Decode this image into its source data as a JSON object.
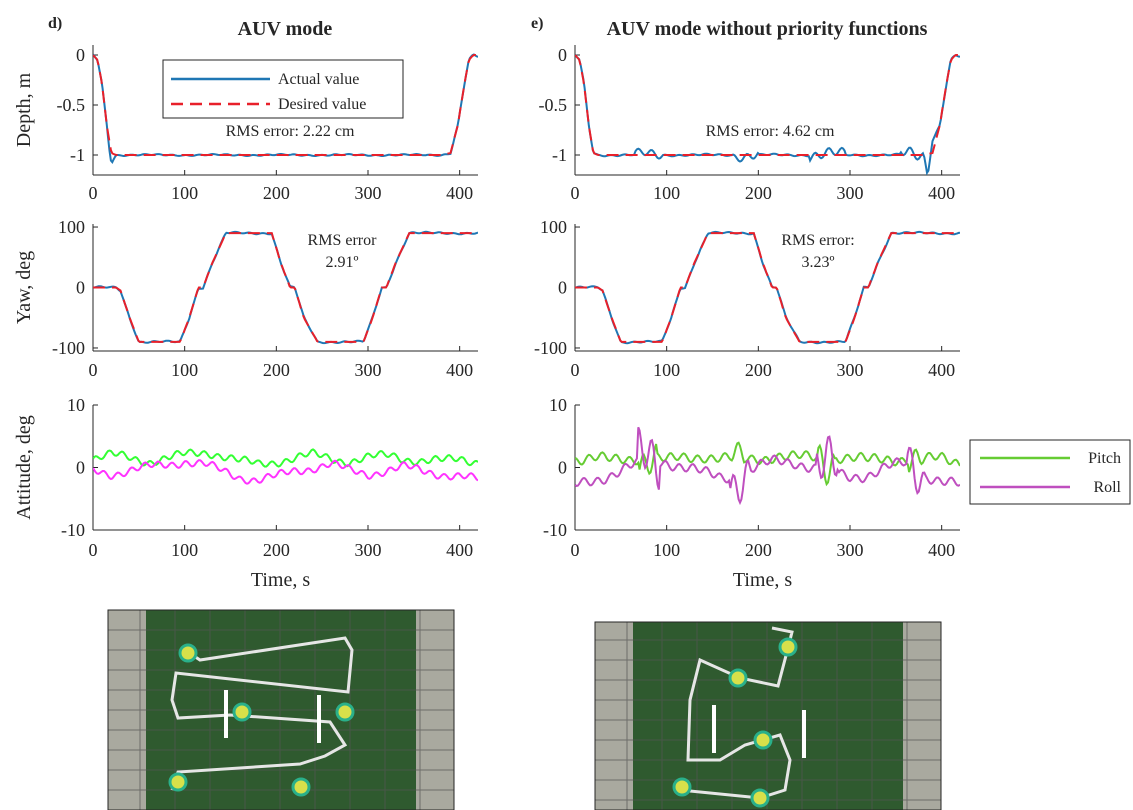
{
  "panel_labels": {
    "left": "d)",
    "right": "e)"
  },
  "legend_top": {
    "actual": "Actual value",
    "desired": "Desired value"
  },
  "legend_att": {
    "pitch": "Pitch",
    "roll": "Roll"
  },
  "colors": {
    "actual": "#1f77b4",
    "desired": "#e8202a",
    "pitch_left": "#33ff33",
    "roll_left": "#ff33ff",
    "pitch_right": "#66cc33",
    "roll_right": "#bf4fbf",
    "axis": "#262626",
    "tank": "#2f5a2f",
    "track": "#e6e6e6",
    "vehicle": "#d8e04a"
  },
  "chart_data": [
    {
      "id": "d-depth",
      "type": "line",
      "title": "AUV mode",
      "xlabel": "",
      "ylabel": "Depth, m",
      "xlim": [
        0,
        420
      ],
      "ylim": [
        -1.2,
        0.1
      ],
      "xticks": [
        "0",
        "100",
        "200",
        "300",
        "400"
      ],
      "yticks": [
        "0",
        "-0.5",
        "-1"
      ],
      "annotation": "RMS error: 2.22 cm",
      "series": [
        {
          "name": "Actual value",
          "x": [
            0,
            5,
            10,
            15,
            18,
            20,
            25,
            50,
            100,
            150,
            200,
            250,
            300,
            350,
            380,
            390,
            398,
            405,
            410,
            415,
            420
          ],
          "y": [
            0,
            -0.05,
            -0.3,
            -0.7,
            -0.95,
            -1.08,
            -1.0,
            -1.0,
            -1.0,
            -1.0,
            -1.0,
            -1.0,
            -1.0,
            -1.0,
            -1.0,
            -0.98,
            -0.7,
            -0.3,
            -0.05,
            0,
            -0.02
          ]
        },
        {
          "name": "Desired value",
          "x": [
            0,
            5,
            10,
            15,
            20,
            25,
            50,
            100,
            150,
            200,
            250,
            300,
            350,
            380,
            390,
            398,
            405,
            410,
            415,
            420
          ],
          "y": [
            0,
            -0.05,
            -0.3,
            -0.7,
            -0.98,
            -1.0,
            -1.0,
            -1.0,
            -1.0,
            -1.0,
            -1.0,
            -1.0,
            -1.0,
            -1.0,
            -0.98,
            -0.7,
            -0.3,
            -0.05,
            0,
            0
          ]
        }
      ]
    },
    {
      "id": "e-depth",
      "type": "line",
      "title": "AUV mode without priority functions",
      "xlabel": "",
      "ylabel": "",
      "xlim": [
        0,
        420
      ],
      "ylim": [
        -1.2,
        0.1
      ],
      "xticks": [
        "0",
        "100",
        "200",
        "300",
        "400"
      ],
      "yticks": [
        "0",
        "-0.5",
        "-1"
      ],
      "annotation": "RMS error: 4.62 cm",
      "series": [
        {
          "name": "Actual value",
          "x": [
            0,
            5,
            10,
            15,
            20,
            25,
            50,
            100,
            150,
            200,
            250,
            300,
            350,
            380,
            385,
            390,
            398,
            405,
            410,
            415,
            420
          ],
          "y": [
            0,
            -0.05,
            -0.3,
            -0.7,
            -0.98,
            -1.0,
            -1.0,
            -1.0,
            -1.0,
            -1.0,
            -1.0,
            -1.0,
            -1.0,
            -1.0,
            -1.18,
            -0.85,
            -0.7,
            -0.3,
            -0.05,
            0,
            -0.02
          ]
        },
        {
          "name": "Desired value",
          "x": [
            0,
            5,
            10,
            15,
            20,
            25,
            50,
            100,
            150,
            200,
            250,
            300,
            350,
            380,
            390,
            398,
            405,
            410,
            415,
            420
          ],
          "y": [
            0,
            -0.05,
            -0.3,
            -0.7,
            -0.98,
            -1.0,
            -1.0,
            -1.0,
            -1.0,
            -1.0,
            -1.0,
            -1.0,
            -1.0,
            -1.0,
            -0.98,
            -0.7,
            -0.3,
            -0.05,
            0,
            0
          ]
        }
      ]
    },
    {
      "id": "d-yaw",
      "type": "line",
      "xlabel": "",
      "ylabel": "Yaw, deg",
      "xlim": [
        0,
        420
      ],
      "ylim": [
        -105,
        105
      ],
      "xticks": [
        "0",
        "100",
        "200",
        "300",
        "400"
      ],
      "yticks": [
        "100",
        "0",
        "-100"
      ],
      "annotation": [
        "RMS error",
        "2.91º"
      ],
      "series": [
        {
          "name": "Actual value",
          "x": [
            0,
            25,
            30,
            40,
            50,
            95,
            105,
            115,
            120,
            130,
            145,
            195,
            205,
            215,
            220,
            230,
            245,
            295,
            305,
            315,
            320,
            330,
            345,
            420
          ],
          "y": [
            0,
            0,
            -5,
            -50,
            -90,
            -90,
            -50,
            0,
            0,
            40,
            90,
            90,
            40,
            0,
            0,
            -50,
            -90,
            -90,
            -50,
            0,
            0,
            40,
            90,
            90
          ]
        },
        {
          "name": "Desired value",
          "x": [
            0,
            25,
            30,
            40,
            50,
            95,
            105,
            115,
            120,
            130,
            145,
            195,
            205,
            215,
            220,
            230,
            245,
            295,
            305,
            315,
            320,
            330,
            345,
            420
          ],
          "y": [
            0,
            0,
            -5,
            -50,
            -90,
            -90,
            -50,
            0,
            0,
            40,
            90,
            90,
            40,
            0,
            0,
            -50,
            -90,
            -90,
            -50,
            0,
            0,
            40,
            90,
            90
          ]
        }
      ]
    },
    {
      "id": "e-yaw",
      "type": "line",
      "xlabel": "",
      "ylabel": "",
      "xlim": [
        0,
        420
      ],
      "ylim": [
        -105,
        105
      ],
      "xticks": [
        "0",
        "100",
        "200",
        "300",
        "400"
      ],
      "yticks": [
        "100",
        "0",
        "-100"
      ],
      "annotation": [
        "RMS error:",
        "3.23º"
      ],
      "series": [
        {
          "name": "Actual value",
          "x": [
            0,
            25,
            30,
            40,
            50,
            95,
            105,
            115,
            120,
            130,
            145,
            195,
            205,
            215,
            220,
            230,
            245,
            295,
            305,
            315,
            320,
            330,
            345,
            420
          ],
          "y": [
            0,
            0,
            -5,
            -50,
            -90,
            -90,
            -50,
            0,
            0,
            40,
            90,
            90,
            40,
            0,
            0,
            -50,
            -90,
            -90,
            -50,
            0,
            0,
            40,
            90,
            90
          ]
        },
        {
          "name": "Desired value",
          "x": [
            0,
            25,
            30,
            40,
            50,
            95,
            105,
            115,
            120,
            130,
            145,
            195,
            205,
            215,
            220,
            230,
            245,
            295,
            305,
            315,
            320,
            330,
            345,
            420
          ],
          "y": [
            0,
            0,
            -5,
            -50,
            -90,
            -90,
            -50,
            0,
            0,
            40,
            90,
            90,
            40,
            0,
            0,
            -50,
            -90,
            -90,
            -50,
            0,
            0,
            40,
            90,
            90
          ]
        }
      ]
    },
    {
      "id": "d-att",
      "type": "line",
      "xlabel": "Time, s",
      "ylabel": "Attitude, deg",
      "xlim": [
        0,
        420
      ],
      "ylim": [
        -10,
        10
      ],
      "xticks": [
        "0",
        "100",
        "200",
        "300",
        "400"
      ],
      "yticks": [
        "10",
        "0",
        "-10"
      ],
      "series": [
        {
          "name": "Pitch",
          "x": [
            0,
            20,
            40,
            60,
            80,
            100,
            125,
            140,
            160,
            180,
            200,
            220,
            240,
            260,
            280,
            300,
            325,
            340,
            360,
            380,
            400,
            420
          ],
          "y": [
            1.5,
            2,
            1.5,
            1,
            1.5,
            2,
            2.5,
            2,
            1,
            0.5,
            1,
            1.5,
            2,
            1.5,
            1,
            1.5,
            2,
            1.5,
            1,
            1,
            1.5,
            1
          ]
        },
        {
          "name": "Roll",
          "x": [
            0,
            20,
            40,
            60,
            80,
            100,
            120,
            140,
            160,
            180,
            200,
            220,
            240,
            260,
            280,
            300,
            320,
            340,
            360,
            380,
            400,
            420
          ],
          "y": [
            -0.5,
            -1,
            -0.5,
            0,
            0.5,
            1,
            0.5,
            -0.5,
            -1.5,
            -2,
            -1.5,
            -0.5,
            0,
            0.5,
            -0.5,
            -1,
            -0.5,
            0,
            -0.5,
            -1,
            -1.5,
            -2
          ]
        }
      ]
    },
    {
      "id": "e-att",
      "type": "line",
      "xlabel": "Time, s",
      "ylabel": "",
      "xlim": [
        0,
        420
      ],
      "ylim": [
        -10,
        10
      ],
      "xticks": [
        "0",
        "100",
        "200",
        "300",
        "400"
      ],
      "yticks": [
        "10",
        "0",
        "-10"
      ],
      "series": [
        {
          "name": "Pitch",
          "x": [
            0,
            20,
            40,
            60,
            80,
            100,
            120,
            140,
            160,
            180,
            200,
            220,
            240,
            260,
            280,
            300,
            320,
            340,
            360,
            380,
            400,
            420
          ],
          "y": [
            1.5,
            1.5,
            1,
            1.5,
            2,
            1,
            1.5,
            2,
            1.5,
            1,
            1.5,
            2,
            1.5,
            1.5,
            2,
            1.5,
            1,
            1.5,
            1.5,
            1,
            1.5,
            1
          ]
        },
        {
          "name": "Roll",
          "x": [
            0,
            20,
            40,
            60,
            80,
            100,
            120,
            140,
            160,
            180,
            200,
            220,
            240,
            260,
            280,
            300,
            320,
            340,
            360,
            380,
            400,
            420
          ],
          "y": [
            -3,
            -2,
            -1,
            0,
            1,
            1,
            0,
            -1,
            -1.5,
            -1,
            0,
            1,
            1,
            0,
            -1,
            -1.5,
            -1,
            0,
            0.5,
            -1,
            -2,
            -3
          ]
        }
      ]
    }
  ]
}
